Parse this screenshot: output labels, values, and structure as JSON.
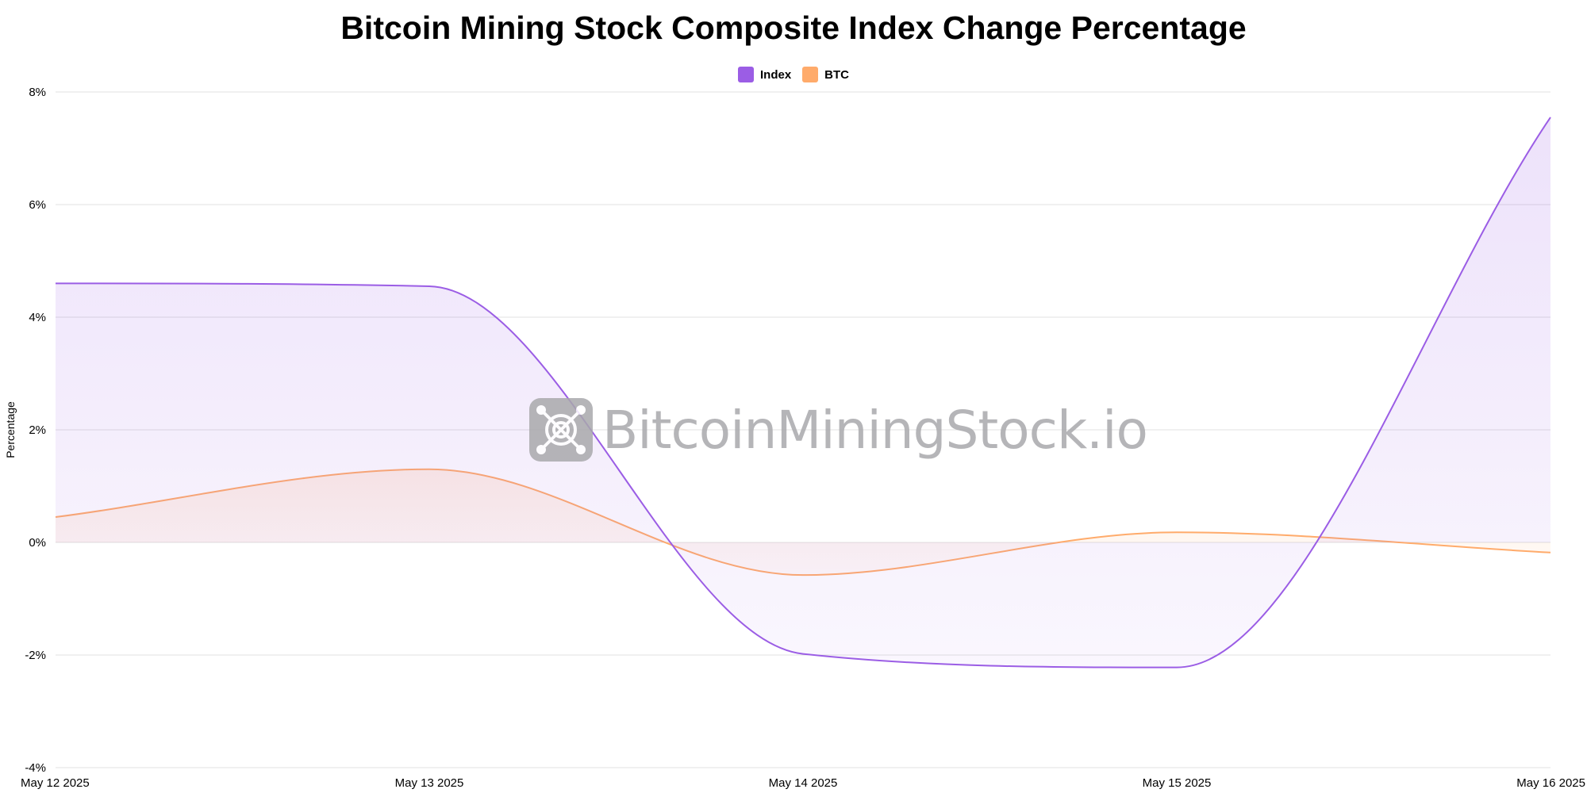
{
  "chart_data": {
    "type": "line",
    "title": "Bitcoin Mining Stock Composite Index Change Percentage",
    "xlabel": "",
    "ylabel": "Percentage",
    "categories": [
      "May 12 2025",
      "May 13 2025",
      "May 14 2025",
      "May 15 2025",
      "May 16 2025"
    ],
    "ylim": [
      -4,
      8
    ],
    "yticks": [
      -4,
      -2,
      0,
      2,
      4,
      6,
      8
    ],
    "ytick_labels": [
      "-4%",
      "-2%",
      "0%",
      "2%",
      "4%",
      "6%",
      "8%"
    ],
    "grid": true,
    "legend_position": "top-center",
    "series": [
      {
        "name": "Index",
        "values": [
          4.6,
          4.55,
          -1.98,
          -2.22,
          7.55
        ],
        "color": "#9b5de5",
        "fill": true
      },
      {
        "name": "BTC",
        "values": [
          0.45,
          1.3,
          -0.58,
          0.18,
          -0.18
        ],
        "color": "#ffab6b",
        "fill": true
      }
    ]
  },
  "watermark": {
    "text": "BitcoinMiningStock.io"
  }
}
